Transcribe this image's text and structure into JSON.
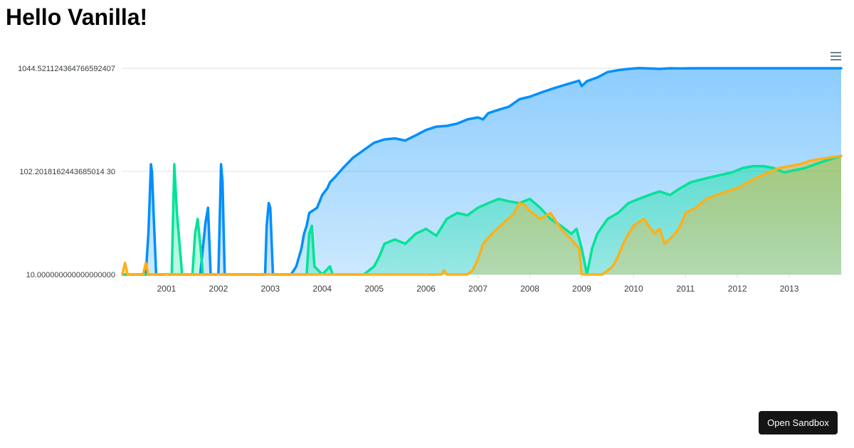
{
  "page": {
    "title": "Hello Vanilla!",
    "open_sandbox_label": "Open Sandbox"
  },
  "chart_data": {
    "type": "area",
    "title": "",
    "xlabel": "",
    "ylabel": "",
    "y_scale": "log",
    "ylim": [
      10,
      1044.5211243647666
    ],
    "xlim": [
      2000.15,
      2014.0
    ],
    "grid": true,
    "legend": "none",
    "y_tick_labels": [
      "1044.521124364766592407",
      "102.2018162443685014 30",
      "10.000000000000000000"
    ],
    "x_tick_labels": [
      "2001",
      "2002",
      "2003",
      "2004",
      "2005",
      "2006",
      "2007",
      "2008",
      "2009",
      "2010",
      "2011",
      "2012",
      "2013"
    ],
    "colors": [
      "#008ffb",
      "#00e396",
      "#feb019"
    ],
    "series": [
      {
        "color": "#008ffb",
        "x": [
          2000.15,
          2000.55,
          2000.6,
          2000.65,
          2000.7,
          2000.72,
          2000.75,
          2000.8,
          2001.0,
          2001.5,
          2001.65,
          2001.7,
          2001.75,
          2001.8,
          2001.85,
          2002.0,
          2002.05,
          2002.08,
          2002.12,
          2002.5,
          2002.9,
          2002.93,
          2002.97,
          2003.0,
          2003.05,
          2003.4,
          2003.5,
          2003.6,
          2003.65,
          2003.7,
          2003.75,
          2003.9,
          2004.0,
          2004.1,
          2004.15,
          2004.25,
          2004.4,
          2004.6,
          2004.8,
          2005.0,
          2005.2,
          2005.4,
          2005.6,
          2005.8,
          2006.0,
          2006.2,
          2006.4,
          2006.6,
          2006.8,
          2007.0,
          2007.1,
          2007.2,
          2007.4,
          2007.6,
          2007.8,
          2008.0,
          2008.2,
          2008.4,
          2008.6,
          2008.8,
          2008.95,
          2009.0,
          2009.1,
          2009.3,
          2009.5,
          2009.7,
          2009.9,
          2010.1,
          2010.3,
          2010.5,
          2010.7,
          2010.9,
          2011.1,
          2011.3,
          2011.5,
          2011.7,
          2011.9,
          2012.1,
          2012.3,
          2012.5,
          2012.7,
          2012.9,
          2013.1,
          2013.3,
          2013.5,
          2013.7,
          2013.9,
          2014.0
        ],
        "y": [
          10,
          10,
          10,
          25,
          120,
          100,
          40,
          10,
          10,
          10,
          10,
          18,
          32,
          45,
          10,
          10,
          120,
          80,
          10,
          10,
          10,
          30,
          50,
          45,
          10,
          10,
          12,
          18,
          25,
          30,
          40,
          45,
          60,
          70,
          80,
          90,
          110,
          140,
          165,
          195,
          210,
          215,
          205,
          230,
          260,
          280,
          285,
          300,
          330,
          345,
          330,
          380,
          410,
          440,
          520,
          550,
          600,
          650,
          700,
          750,
          790,
          700,
          780,
          850,
          960,
          1000,
          1030,
          1050,
          1040,
          1030,
          1044,
          1040,
          1044,
          1044,
          1044,
          1044,
          1044,
          1044,
          1044,
          1044,
          1044,
          1044,
          1044,
          1044,
          1044,
          1044,
          1044,
          1044
        ]
      },
      {
        "color": "#00e396",
        "x": [
          2000.15,
          2001.0,
          2001.1,
          2001.15,
          2001.2,
          2001.3,
          2001.5,
          2001.55,
          2001.6,
          2001.65,
          2001.7,
          2002.0,
          2003.5,
          2003.7,
          2003.75,
          2003.8,
          2003.85,
          2004.0,
          2004.15,
          2004.2,
          2004.3,
          2004.6,
          2004.8,
          2005.0,
          2005.1,
          2005.2,
          2005.4,
          2005.6,
          2005.8,
          2006.0,
          2006.2,
          2006.4,
          2006.6,
          2006.8,
          2007.0,
          2007.2,
          2007.4,
          2007.6,
          2007.8,
          2008.0,
          2008.2,
          2008.4,
          2008.6,
          2008.8,
          2008.9,
          2009.0,
          2009.1,
          2009.2,
          2009.3,
          2009.5,
          2009.7,
          2009.9,
          2010.1,
          2010.3,
          2010.5,
          2010.7,
          2010.9,
          2011.1,
          2011.3,
          2011.5,
          2011.7,
          2011.9,
          2012.1,
          2012.3,
          2012.5,
          2012.7,
          2012.9,
          2013.1,
          2013.3,
          2013.5,
          2013.7,
          2013.9,
          2014.0
        ],
        "y": [
          10,
          10,
          10,
          120,
          40,
          10,
          10,
          25,
          35,
          20,
          10,
          10,
          10,
          10,
          25,
          30,
          12,
          10,
          12,
          10,
          10,
          10,
          10,
          12,
          15,
          20,
          22,
          20,
          25,
          28,
          24,
          35,
          40,
          38,
          45,
          50,
          55,
          52,
          50,
          55,
          45,
          35,
          30,
          25,
          28,
          18,
          10,
          18,
          25,
          35,
          40,
          50,
          55,
          60,
          65,
          60,
          70,
          80,
          85,
          90,
          95,
          100,
          110,
          115,
          115,
          110,
          100,
          105,
          110,
          120,
          130,
          140,
          145
        ],
        "note": ""
      },
      {
        "color": "#feb019",
        "x": [
          2000.15,
          2000.2,
          2000.25,
          2000.3,
          2000.55,
          2000.6,
          2000.65,
          2000.7,
          2001.0,
          2002.0,
          2003.0,
          2004.0,
          2004.5,
          2004.8,
          2005.0,
          2005.2,
          2005.4,
          2005.6,
          2005.8,
          2006.0,
          2006.2,
          2006.3,
          2006.35,
          2006.4,
          2006.6,
          2006.8,
          2006.9,
          2007.0,
          2007.1,
          2007.3,
          2007.5,
          2007.7,
          2007.8,
          2007.9,
          2008.0,
          2008.2,
          2008.4,
          2008.6,
          2008.8,
          2008.95,
          2009.0,
          2009.2,
          2009.4,
          2009.6,
          2009.7,
          2009.8,
          2009.9,
          2010.0,
          2010.2,
          2010.4,
          2010.5,
          2010.6,
          2010.8,
          2010.9,
          2011.0,
          2011.2,
          2011.4,
          2011.6,
          2011.8,
          2012.0,
          2012.2,
          2012.4,
          2012.6,
          2012.8,
          2013.0,
          2013.2,
          2013.4,
          2013.6,
          2013.8,
          2014.0
        ],
        "y": [
          10,
          13,
          10,
          10,
          10,
          13,
          10,
          10,
          10,
          10,
          10,
          10,
          10,
          10,
          10,
          10,
          10,
          10,
          10,
          10,
          10,
          10,
          11,
          10,
          10,
          10,
          11,
          14,
          20,
          26,
          32,
          40,
          50,
          48,
          42,
          35,
          40,
          28,
          22,
          18,
          10,
          10,
          10,
          12,
          15,
          20,
          25,
          30,
          35,
          25,
          28,
          20,
          25,
          30,
          40,
          45,
          55,
          60,
          65,
          70,
          80,
          90,
          100,
          110,
          115,
          120,
          130,
          135,
          140,
          145
        ]
      }
    ]
  }
}
